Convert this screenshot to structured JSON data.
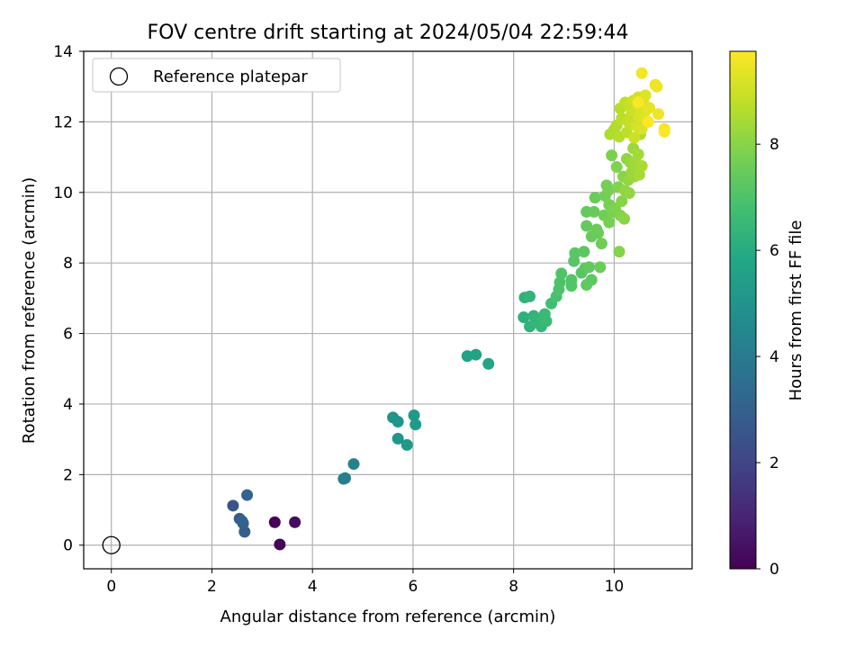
{
  "chart_data": {
    "type": "scatter",
    "title": "FOV centre drift starting at 2024/05/04 22:59:44",
    "xlabel": "Angular distance from reference (arcmin)",
    "ylabel": "Rotation from reference (arcmin)",
    "xlim": [
      -0.55,
      11.55
    ],
    "ylim": [
      -0.67,
      14.0
    ],
    "xticks": [
      "0",
      "2",
      "4",
      "6",
      "8",
      "10"
    ],
    "yticks": [
      "0",
      "2",
      "4",
      "6",
      "8",
      "10",
      "12",
      "14"
    ],
    "grid": true,
    "legend": {
      "position": "top-left",
      "entries": [
        "Reference platepar"
      ]
    },
    "reference_point": {
      "x": 0,
      "y": 0
    },
    "colorbar": {
      "label": "Hours from first FF file",
      "colormap": "viridis",
      "range": [
        0,
        9.75
      ],
      "ticks": [
        "0",
        "2",
        "4",
        "6",
        "8"
      ]
    },
    "points": [
      [
        3.25,
        0.65,
        0.05
      ],
      [
        3.35,
        0.02,
        0.15
      ],
      [
        3.65,
        0.65,
        0.3
      ],
      [
        2.42,
        1.12,
        2.6
      ],
      [
        2.55,
        0.75,
        2.7
      ],
      [
        2.62,
        0.62,
        2.8
      ],
      [
        2.65,
        0.38,
        2.9
      ],
      [
        2.7,
        1.42,
        3.0
      ],
      [
        2.6,
        0.68,
        3.1
      ],
      [
        4.62,
        1.88,
        4.1
      ],
      [
        4.65,
        1.9,
        4.15
      ],
      [
        4.82,
        2.3,
        4.25
      ],
      [
        5.6,
        3.62,
        5.0
      ],
      [
        5.7,
        3.5,
        5.05
      ],
      [
        5.7,
        3.02,
        5.1
      ],
      [
        5.88,
        2.84,
        5.2
      ],
      [
        6.02,
        3.68,
        5.25
      ],
      [
        6.05,
        3.42,
        5.3
      ],
      [
        7.08,
        5.36,
        5.6
      ],
      [
        7.25,
        5.4,
        5.65
      ],
      [
        7.5,
        5.14,
        5.7
      ],
      [
        8.2,
        6.46,
        6.2
      ],
      [
        8.22,
        7.02,
        6.25
      ],
      [
        8.32,
        7.05,
        6.3
      ],
      [
        8.32,
        6.2,
        6.3
      ],
      [
        8.4,
        6.5,
        6.35
      ],
      [
        8.45,
        6.32,
        6.4
      ],
      [
        8.55,
        6.2,
        6.45
      ],
      [
        8.6,
        6.42,
        6.5
      ],
      [
        8.62,
        6.55,
        6.55
      ],
      [
        8.65,
        6.35,
        6.6
      ],
      [
        8.75,
        6.85,
        6.8
      ],
      [
        8.85,
        7.05,
        6.9
      ],
      [
        8.9,
        7.25,
        7.0
      ],
      [
        8.92,
        7.45,
        7.0
      ],
      [
        8.95,
        7.7,
        7.05
      ],
      [
        9.15,
        7.35,
        7.1
      ],
      [
        9.15,
        7.52,
        7.1
      ],
      [
        9.2,
        8.05,
        7.15
      ],
      [
        9.22,
        8.28,
        7.2
      ],
      [
        9.35,
        7.72,
        7.2
      ],
      [
        9.4,
        8.32,
        7.25
      ],
      [
        9.42,
        7.85,
        7.25
      ],
      [
        9.45,
        7.38,
        7.3
      ],
      [
        9.55,
        7.52,
        7.3
      ],
      [
        9.5,
        7.88,
        7.35
      ],
      [
        9.45,
        9.05,
        7.4
      ],
      [
        9.45,
        9.45,
        7.4
      ],
      [
        9.55,
        8.75,
        7.45
      ],
      [
        9.6,
        9.45,
        7.45
      ],
      [
        9.62,
        9.85,
        7.5
      ],
      [
        9.65,
        8.95,
        7.5
      ],
      [
        9.68,
        8.85,
        7.55
      ],
      [
        9.72,
        7.88,
        7.55
      ],
      [
        9.75,
        8.55,
        7.6
      ],
      [
        9.8,
        9.35,
        7.6
      ],
      [
        9.82,
        9.9,
        7.65
      ],
      [
        9.85,
        10.2,
        7.7
      ],
      [
        9.88,
        10.05,
        7.7
      ],
      [
        9.9,
        9.65,
        7.75
      ],
      [
        9.9,
        9.15,
        7.75
      ],
      [
        9.95,
        11.05,
        7.8
      ],
      [
        9.98,
        9.45,
        7.8
      ],
      [
        10.02,
        9.55,
        7.85
      ],
      [
        10.05,
        10.72,
        7.9
      ],
      [
        10.08,
        10.15,
        7.9
      ],
      [
        10.1,
        8.32,
        7.95
      ],
      [
        10.12,
        9.35,
        7.95
      ],
      [
        10.15,
        9.75,
        8.0
      ],
      [
        10.18,
        10.45,
        8.0
      ],
      [
        10.2,
        9.25,
        8.05
      ],
      [
        10.22,
        10.05,
        8.1
      ],
      [
        10.25,
        10.95,
        8.1
      ],
      [
        10.28,
        10.35,
        8.15
      ],
      [
        10.3,
        9.98,
        8.15
      ],
      [
        10.32,
        10.85,
        8.2
      ],
      [
        10.35,
        10.58,
        8.25
      ],
      [
        10.38,
        11.25,
        8.3
      ],
      [
        10.4,
        10.45,
        8.3
      ],
      [
        10.42,
        10.88,
        8.35
      ],
      [
        10.45,
        10.65,
        8.35
      ],
      [
        10.48,
        11.08,
        8.4
      ],
      [
        10.5,
        10.5,
        8.45
      ],
      [
        10.52,
        11.65,
        8.5
      ],
      [
        10.55,
        10.75,
        8.5
      ],
      [
        9.92,
        11.65,
        8.55
      ],
      [
        10.0,
        11.78,
        8.6
      ],
      [
        10.05,
        11.9,
        8.6
      ],
      [
        10.1,
        11.58,
        8.65
      ],
      [
        10.12,
        12.38,
        8.7
      ],
      [
        10.15,
        12.1,
        8.75
      ],
      [
        10.22,
        12.55,
        8.8
      ],
      [
        10.25,
        11.7,
        8.8
      ],
      [
        10.28,
        12.0,
        8.85
      ],
      [
        10.3,
        12.45,
        8.9
      ],
      [
        10.32,
        11.95,
        8.9
      ],
      [
        10.35,
        12.25,
        8.95
      ],
      [
        10.38,
        12.6,
        9.0
      ],
      [
        10.4,
        11.55,
        9.0
      ],
      [
        10.42,
        12.28,
        9.05
      ],
      [
        10.45,
        11.88,
        9.1
      ],
      [
        10.48,
        12.7,
        9.1
      ],
      [
        10.5,
        12.15,
        9.15
      ],
      [
        10.52,
        12.42,
        9.2
      ],
      [
        10.55,
        11.8,
        9.2
      ],
      [
        10.58,
        12.6,
        9.25
      ],
      [
        10.6,
        12.1,
        9.3
      ],
      [
        10.62,
        12.75,
        9.3
      ],
      [
        10.65,
        12.35,
        9.35
      ],
      [
        10.7,
        12.4,
        9.4
      ],
      [
        10.82,
        13.05,
        9.45
      ],
      [
        10.85,
        13.0,
        9.5
      ],
      [
        10.88,
        12.22,
        9.55
      ],
      [
        10.55,
        13.38,
        9.6
      ],
      [
        11.0,
        11.8,
        9.65
      ],
      [
        11.0,
        11.72,
        9.7
      ],
      [
        10.48,
        12.55,
        9.7
      ],
      [
        10.68,
        12.0,
        9.75
      ]
    ]
  }
}
